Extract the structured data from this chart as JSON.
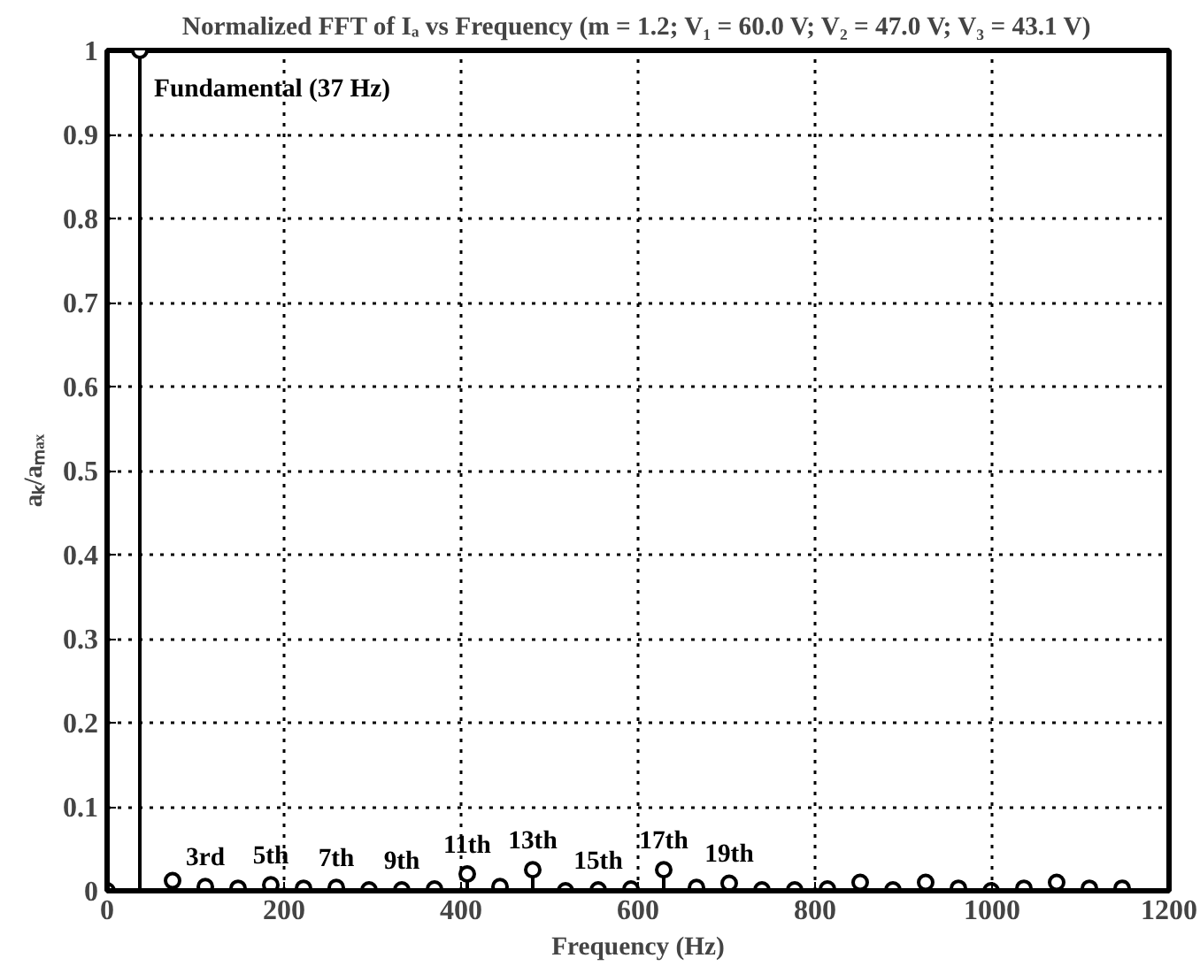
{
  "chart_data": {
    "type": "lollipop",
    "title": "Normalized FFT of Iₐ vs Frequency (m = 1.2; V₁ = 60.0 V; V₂ = 47.0 V; V₃ = 43.1 V)",
    "xlabel": "Frequency (Hz)",
    "ylabel": "aₖ/aₘₐₓ",
    "x": [
      0,
      37,
      74,
      111,
      148,
      185,
      222,
      259,
      296,
      333,
      370,
      407,
      444,
      481,
      518,
      555,
      592,
      629,
      666,
      703,
      740,
      777,
      814,
      851,
      888,
      925,
      962,
      999,
      1036,
      1073,
      1110,
      1147
    ],
    "values": [
      0,
      1,
      0.012,
      0.005,
      0.003,
      0.007,
      0.003,
      0.004,
      0.001,
      0.001,
      0.002,
      0.02,
      0.005,
      0.025,
      0,
      0.001,
      0.002,
      0.025,
      0.004,
      0.009,
      0.001,
      0.001,
      0.002,
      0.01,
      0.001,
      0.01,
      0.003,
      0,
      0.003,
      0.01,
      0.003,
      0.003
    ],
    "color": "#000000",
    "marker": "circle",
    "xlim": [
      0,
      1200
    ],
    "xticks": [
      0,
      200,
      400,
      600,
      800,
      1000,
      1200
    ],
    "ylim": [
      0,
      1
    ],
    "yticks": [
      0,
      0.1,
      0.2,
      0.3,
      0.4,
      0.5,
      0.6,
      0.7,
      0.8,
      0.9,
      1
    ],
    "grid": true,
    "annotations": [
      {
        "text": "Fundamental (37 Hz)",
        "x": 37,
        "y": 1
      },
      {
        "text": "3rd",
        "x": 111,
        "y": 0.005
      },
      {
        "text": "5th",
        "x": 185,
        "y": 0.007
      },
      {
        "text": "7th",
        "x": 259,
        "y": 0.004
      },
      {
        "text": "9th",
        "x": 333,
        "y": 0.001
      },
      {
        "text": "11th",
        "x": 407,
        "y": 0.02
      },
      {
        "text": "13th",
        "x": 481,
        "y": 0.025
      },
      {
        "text": "15th",
        "x": 555,
        "y": 0.001
      },
      {
        "text": "17th",
        "x": 629,
        "y": 0.025
      },
      {
        "text": "19th",
        "x": 703,
        "y": 0.009
      }
    ]
  }
}
